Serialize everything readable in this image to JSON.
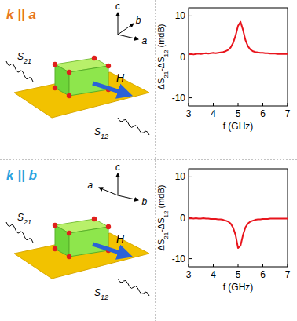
{
  "chart_data": [
    {
      "type": "line",
      "title": "k || a",
      "title_color": "#e87722",
      "xlabel": "f (GHz)",
      "ylabel": "ΔS21-ΔS12 (mdB)",
      "x": [
        3.0,
        3.1,
        3.2,
        3.3,
        3.4,
        3.5,
        3.6,
        3.7,
        3.8,
        3.9,
        4.0,
        4.1,
        4.2,
        4.3,
        4.4,
        4.5,
        4.6,
        4.7,
        4.8,
        4.9,
        5.0,
        5.1,
        5.2,
        5.3,
        5.4,
        5.5,
        5.6,
        5.7,
        5.8,
        5.9,
        6.0,
        6.1,
        6.2,
        6.3,
        6.4,
        6.5,
        6.6,
        6.7,
        6.8,
        6.9,
        7.0
      ],
      "values": [
        0.6,
        0.7,
        0.6,
        0.7,
        0.8,
        0.7,
        0.8,
        0.9,
        0.8,
        0.9,
        1.0,
        0.9,
        1.0,
        1.1,
        1.2,
        1.4,
        1.7,
        2.3,
        3.4,
        5.2,
        7.6,
        8.6,
        6.6,
        4.1,
        2.6,
        1.8,
        1.4,
        1.2,
        1.1,
        1.0,
        1.0,
        0.9,
        0.9,
        0.8,
        0.8,
        0.8,
        0.7,
        0.7,
        0.7,
        0.7,
        0.7
      ],
      "color": "#e8141c",
      "line_style": "solid",
      "xlim": [
        3,
        7
      ],
      "ylim": [
        -12,
        12
      ],
      "xticks": [
        3,
        4,
        5,
        6,
        7
      ],
      "yticks": [
        -10,
        0,
        10
      ],
      "grid": false
    },
    {
      "type": "line",
      "title": "k || b",
      "title_color": "#29a3e0",
      "xlabel": "f (GHz)",
      "ylabel": "ΔS21-ΔS12 (mdB)",
      "x": [
        3.0,
        3.1,
        3.2,
        3.3,
        3.4,
        3.5,
        3.6,
        3.7,
        3.8,
        3.9,
        4.0,
        4.1,
        4.2,
        4.3,
        4.4,
        4.5,
        4.6,
        4.7,
        4.8,
        4.9,
        5.0,
        5.1,
        5.2,
        5.3,
        5.4,
        5.5,
        5.6,
        5.7,
        5.8,
        5.9,
        6.0,
        6.1,
        6.2,
        6.3,
        6.4,
        6.5,
        6.6,
        6.7,
        6.8,
        6.9,
        7.0
      ],
      "values": [
        -0.2,
        -0.1,
        -0.2,
        -0.1,
        -0.2,
        -0.2,
        -0.1,
        -0.2,
        -0.2,
        -0.3,
        -0.3,
        -0.3,
        -0.4,
        -0.4,
        -0.5,
        -0.7,
        -0.9,
        -1.4,
        -2.4,
        -4.2,
        -7.4,
        -6.8,
        -4.2,
        -2.3,
        -1.4,
        -0.9,
        -0.7,
        -0.5,
        -0.4,
        -0.4,
        -0.3,
        -0.3,
        -0.3,
        -0.2,
        -0.2,
        -0.2,
        -0.2,
        -0.2,
        -0.2,
        -0.2,
        -0.2
      ],
      "color": "#e8141c",
      "line_style": "solid",
      "xlim": [
        3,
        7
      ],
      "ylim": [
        -12,
        12
      ],
      "xticks": [
        3,
        4,
        5,
        6,
        7
      ],
      "yticks": [
        -10,
        0,
        10
      ],
      "grid": false
    }
  ],
  "diagram": [
    {
      "axes": [
        "c",
        "b",
        "a"
      ],
      "ports": [
        "S21",
        "S12"
      ],
      "field": "H"
    },
    {
      "axes": [
        "c",
        "a",
        "b"
      ],
      "ports": [
        "S21",
        "S12"
      ],
      "field": "H"
    }
  ]
}
